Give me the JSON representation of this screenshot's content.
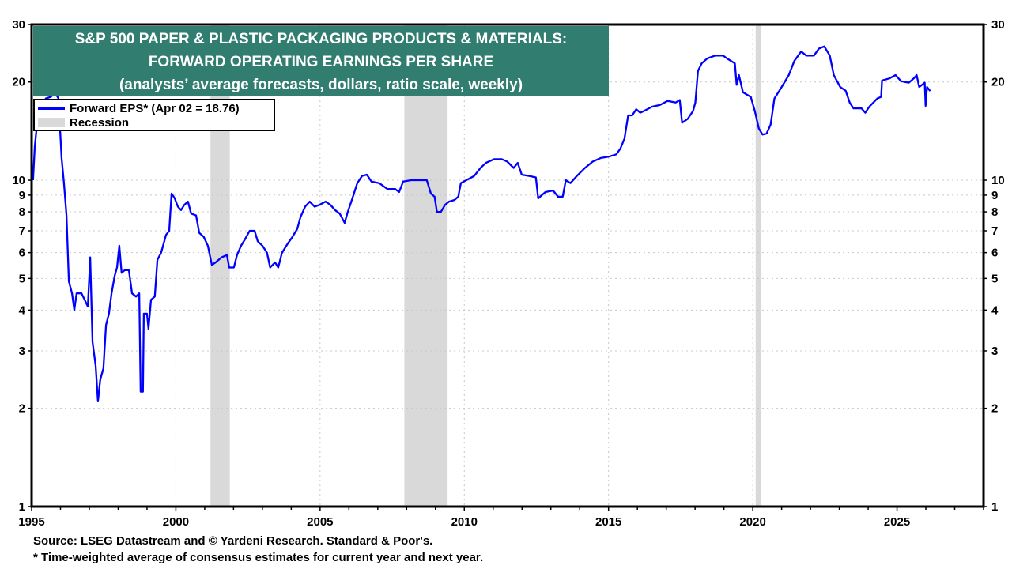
{
  "chart_data": {
    "type": "line",
    "title_lines": [
      "S&P 500 PAPER & PLASTIC PACKAGING PRODUCTS & MATERIALS:",
      "FORWARD OPERATING EARNINGS PER SHARE",
      "(analysts’ average forecasts, dollars, ratio scale, weekly)"
    ],
    "y_scale": "log",
    "ylim": [
      1,
      30
    ],
    "xlim": [
      1995,
      2028
    ],
    "y_ticks": [
      1,
      2,
      3,
      4,
      5,
      6,
      7,
      8,
      9,
      10,
      20,
      30
    ],
    "x_ticks": [
      1995,
      2000,
      2005,
      2010,
      2015,
      2020,
      2025
    ],
    "grid": true,
    "legend_placement": "top-left",
    "legend": [
      {
        "label": "Forward EPS* (Apr 02 = 18.76)",
        "type": "line",
        "color": "#0000ff"
      },
      {
        "label": "Recession",
        "type": "band",
        "color": "#d9d9d9"
      }
    ],
    "recessions": [
      [
        2001.2,
        2001.87
      ],
      [
        2007.92,
        2009.42
      ],
      [
        2020.1,
        2020.3
      ]
    ],
    "series": [
      {
        "color": "#0000ff",
        "points": [
          [
            1995.05,
            10.0
          ],
          [
            1995.11,
            12.7
          ],
          [
            1995.19,
            14.9
          ],
          [
            1995.33,
            16.3
          ],
          [
            1995.49,
            17.8
          ],
          [
            1995.66,
            18.0
          ],
          [
            1995.82,
            18.5
          ],
          [
            1995.93,
            17.8
          ],
          [
            1996.04,
            11.7
          ],
          [
            1996.12,
            9.8
          ],
          [
            1996.21,
            7.8
          ],
          [
            1996.29,
            4.9
          ],
          [
            1996.4,
            4.5
          ],
          [
            1996.48,
            4.0
          ],
          [
            1996.56,
            4.5
          ],
          [
            1996.73,
            4.5
          ],
          [
            1996.84,
            4.3
          ],
          [
            1996.95,
            4.1
          ],
          [
            1997.03,
            5.8
          ],
          [
            1997.11,
            3.2
          ],
          [
            1997.22,
            2.7
          ],
          [
            1997.3,
            2.1
          ],
          [
            1997.38,
            2.45
          ],
          [
            1997.49,
            2.65
          ],
          [
            1997.58,
            3.6
          ],
          [
            1997.68,
            3.9
          ],
          [
            1997.77,
            4.5
          ],
          [
            1997.88,
            5.1
          ],
          [
            1997.96,
            5.4
          ],
          [
            1998.04,
            6.3
          ],
          [
            1998.12,
            5.2
          ],
          [
            1998.23,
            5.3
          ],
          [
            1998.37,
            5.3
          ],
          [
            1998.48,
            4.5
          ],
          [
            1998.62,
            4.4
          ],
          [
            1998.73,
            4.5
          ],
          [
            1998.78,
            2.25
          ],
          [
            1998.86,
            2.25
          ],
          [
            1998.89,
            3.9
          ],
          [
            1999.0,
            3.9
          ],
          [
            1999.05,
            3.5
          ],
          [
            1999.14,
            4.3
          ],
          [
            1999.27,
            4.4
          ],
          [
            1999.36,
            5.7
          ],
          [
            1999.49,
            6.0
          ],
          [
            1999.66,
            6.8
          ],
          [
            1999.77,
            7.0
          ],
          [
            1999.85,
            9.1
          ],
          [
            1999.96,
            8.8
          ],
          [
            2000.07,
            8.3
          ],
          [
            2000.18,
            8.1
          ],
          [
            2000.29,
            8.4
          ],
          [
            2000.42,
            8.6
          ],
          [
            2000.53,
            7.9
          ],
          [
            2000.7,
            7.8
          ],
          [
            2000.81,
            6.9
          ],
          [
            2000.97,
            6.7
          ],
          [
            2001.11,
            6.3
          ],
          [
            2001.25,
            5.5
          ],
          [
            2001.38,
            5.6
          ],
          [
            2001.58,
            5.8
          ],
          [
            2001.77,
            5.9
          ],
          [
            2001.85,
            5.4
          ],
          [
            2002.01,
            5.4
          ],
          [
            2002.12,
            5.9
          ],
          [
            2002.26,
            6.3
          ],
          [
            2002.4,
            6.6
          ],
          [
            2002.56,
            7.0
          ],
          [
            2002.73,
            7.0
          ],
          [
            2002.84,
            6.5
          ],
          [
            2003.0,
            6.3
          ],
          [
            2003.16,
            6.0
          ],
          [
            2003.27,
            5.4
          ],
          [
            2003.44,
            5.6
          ],
          [
            2003.55,
            5.4
          ],
          [
            2003.68,
            6.0
          ],
          [
            2003.88,
            6.4
          ],
          [
            2004.04,
            6.7
          ],
          [
            2004.21,
            7.1
          ],
          [
            2004.32,
            7.7
          ],
          [
            2004.48,
            8.3
          ],
          [
            2004.64,
            8.6
          ],
          [
            2004.81,
            8.3
          ],
          [
            2004.97,
            8.4
          ],
          [
            2005.19,
            8.6
          ],
          [
            2005.36,
            8.4
          ],
          [
            2005.52,
            8.1
          ],
          [
            2005.68,
            7.9
          ],
          [
            2005.85,
            7.4
          ],
          [
            2005.96,
            8.0
          ],
          [
            2006.12,
            8.8
          ],
          [
            2006.29,
            9.8
          ],
          [
            2006.45,
            10.3
          ],
          [
            2006.62,
            10.4
          ],
          [
            2006.78,
            9.9
          ],
          [
            2007.05,
            9.8
          ],
          [
            2007.33,
            9.4
          ],
          [
            2007.6,
            9.4
          ],
          [
            2007.74,
            9.2
          ],
          [
            2007.88,
            9.9
          ],
          [
            2008.15,
            10.0
          ],
          [
            2008.42,
            10.0
          ],
          [
            2008.7,
            10.0
          ],
          [
            2008.84,
            9.1
          ],
          [
            2008.97,
            8.9
          ],
          [
            2009.05,
            8.0
          ],
          [
            2009.19,
            8.0
          ],
          [
            2009.33,
            8.4
          ],
          [
            2009.47,
            8.6
          ],
          [
            2009.66,
            8.7
          ],
          [
            2009.79,
            8.9
          ],
          [
            2009.88,
            9.8
          ],
          [
            2010.07,
            10.0
          ],
          [
            2010.34,
            10.3
          ],
          [
            2010.56,
            10.9
          ],
          [
            2010.75,
            11.3
          ],
          [
            2011.03,
            11.6
          ],
          [
            2011.3,
            11.6
          ],
          [
            2011.49,
            11.4
          ],
          [
            2011.71,
            10.9
          ],
          [
            2011.85,
            11.3
          ],
          [
            2011.99,
            10.4
          ],
          [
            2012.26,
            10.3
          ],
          [
            2012.48,
            10.2
          ],
          [
            2012.56,
            8.8
          ],
          [
            2012.81,
            9.2
          ],
          [
            2013.08,
            9.3
          ],
          [
            2013.25,
            8.9
          ],
          [
            2013.41,
            8.9
          ],
          [
            2013.52,
            10.0
          ],
          [
            2013.68,
            9.8
          ],
          [
            2013.9,
            10.3
          ],
          [
            2014.18,
            10.9
          ],
          [
            2014.45,
            11.4
          ],
          [
            2014.73,
            11.7
          ],
          [
            2015.0,
            11.8
          ],
          [
            2015.27,
            12.0
          ],
          [
            2015.41,
            12.5
          ],
          [
            2015.55,
            13.4
          ],
          [
            2015.68,
            15.8
          ],
          [
            2015.82,
            15.8
          ],
          [
            2015.96,
            16.5
          ],
          [
            2016.1,
            16.1
          ],
          [
            2016.23,
            16.3
          ],
          [
            2016.51,
            16.8
          ],
          [
            2016.78,
            17.0
          ],
          [
            2017.05,
            17.5
          ],
          [
            2017.33,
            17.3
          ],
          [
            2017.47,
            17.6
          ],
          [
            2017.55,
            15.0
          ],
          [
            2017.74,
            15.4
          ],
          [
            2017.93,
            16.3
          ],
          [
            2018.01,
            17.3
          ],
          [
            2018.1,
            21.6
          ],
          [
            2018.23,
            22.8
          ],
          [
            2018.42,
            23.6
          ],
          [
            2018.7,
            24.1
          ],
          [
            2018.97,
            24.1
          ],
          [
            2019.11,
            23.6
          ],
          [
            2019.38,
            22.8
          ],
          [
            2019.44,
            19.6
          ],
          [
            2019.52,
            21.0
          ],
          [
            2019.66,
            18.6
          ],
          [
            2019.93,
            18.0
          ],
          [
            2020.07,
            16.3
          ],
          [
            2020.21,
            14.4
          ],
          [
            2020.34,
            13.8
          ],
          [
            2020.48,
            13.9
          ],
          [
            2020.62,
            14.8
          ],
          [
            2020.75,
            17.8
          ],
          [
            2020.97,
            19.1
          ],
          [
            2021.25,
            21.0
          ],
          [
            2021.44,
            23.2
          ],
          [
            2021.68,
            24.8
          ],
          [
            2021.85,
            24.1
          ],
          [
            2022.12,
            24.1
          ],
          [
            2022.29,
            25.3
          ],
          [
            2022.48,
            25.7
          ],
          [
            2022.67,
            24.1
          ],
          [
            2022.81,
            21.0
          ],
          [
            2023.03,
            19.3
          ],
          [
            2023.22,
            18.8
          ],
          [
            2023.36,
            17.3
          ],
          [
            2023.49,
            16.6
          ],
          [
            2023.77,
            16.6
          ],
          [
            2023.9,
            16.1
          ],
          [
            2024.04,
            16.8
          ],
          [
            2024.32,
            17.8
          ],
          [
            2024.45,
            18.0
          ],
          [
            2024.48,
            20.2
          ],
          [
            2024.73,
            20.5
          ],
          [
            2024.95,
            21.0
          ],
          [
            2025.14,
            20.1
          ],
          [
            2025.41,
            19.9
          ],
          [
            2025.58,
            20.5
          ],
          [
            2025.68,
            21.0
          ],
          [
            2025.77,
            19.3
          ],
          [
            2025.96,
            19.9
          ],
          [
            2025.99,
            16.9
          ],
          [
            2026.04,
            19.3
          ],
          [
            2026.15,
            18.76
          ]
        ]
      }
    ]
  },
  "footer": {
    "source": "Source: LSEG Datastream and © Yardeni Research. Standard & Poor's.",
    "note": "* Time-weighted average of consensus estimates for current year and next year."
  }
}
